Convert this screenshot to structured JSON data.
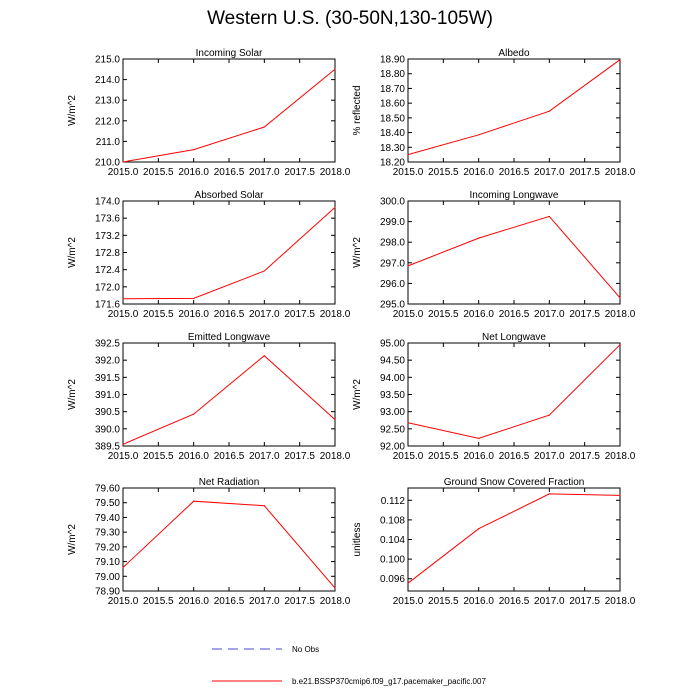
{
  "title": "Western U.S. (30-50N,130-105W)",
  "legend": {
    "obs_label": "No Obs",
    "obs_color": "#4a4acf",
    "model_label": "b.e21.BSSP370cmip6.f09_g17.pacemaker_pacific.007",
    "model_color": "#ff0000"
  },
  "chart_data": [
    {
      "type": "line",
      "title": "Incoming Solar",
      "ylabel": "W/m^2",
      "x": [
        2015,
        2016,
        2017,
        2018
      ],
      "values": [
        210.0,
        210.6,
        211.7,
        214.5
      ],
      "ylim": [
        210.0,
        215.0
      ],
      "yticks": [
        "210.0",
        "211.0",
        "212.0",
        "213.0",
        "214.0",
        "215.0"
      ],
      "ytick_values": [
        210,
        211,
        212,
        213,
        214,
        215
      ],
      "xticks": [
        "2015.0",
        "2015.5",
        "2016.0",
        "2016.5",
        "2017.0",
        "2017.5",
        "2018.0"
      ],
      "xtick_values": [
        2015,
        2015.5,
        2016,
        2016.5,
        2017,
        2017.5,
        2018
      ],
      "xlim": [
        2015,
        2018
      ]
    },
    {
      "type": "line",
      "title": "Albedo",
      "ylabel": "% reflected",
      "x": [
        2015,
        2016,
        2017,
        2018
      ],
      "values": [
        18.25,
        18.385,
        18.545,
        18.895
      ],
      "ylim": [
        18.2,
        18.9
      ],
      "yticks": [
        "18.20",
        "18.30",
        "18.40",
        "18.50",
        "18.60",
        "18.70",
        "18.80",
        "18.90"
      ],
      "ytick_values": [
        18.2,
        18.3,
        18.4,
        18.5,
        18.6,
        18.7,
        18.8,
        18.9
      ],
      "xticks": [
        "2015.0",
        "2015.5",
        "2016.0",
        "2016.5",
        "2017.0",
        "2017.5",
        "2018.0"
      ],
      "xtick_values": [
        2015,
        2015.5,
        2016,
        2016.5,
        2017,
        2017.5,
        2018
      ],
      "xlim": [
        2015,
        2018
      ]
    },
    {
      "type": "line",
      "title": "Absorbed Solar",
      "ylabel": "W/m^2",
      "x": [
        2015,
        2016,
        2017,
        2018
      ],
      "values": [
        171.72,
        171.73,
        172.37,
        173.85
      ],
      "ylim": [
        171.6,
        174.0
      ],
      "yticks": [
        "171.6",
        "172.0",
        "172.4",
        "172.8",
        "173.2",
        "173.6",
        "174.0"
      ],
      "ytick_values": [
        171.6,
        172.0,
        172.4,
        172.8,
        173.2,
        173.6,
        174.0
      ],
      "xticks": [
        "2015.0",
        "2015.5",
        "2016.0",
        "2016.5",
        "2017.0",
        "2017.5",
        "2018.0"
      ],
      "xtick_values": [
        2015,
        2015.5,
        2016,
        2016.5,
        2017,
        2017.5,
        2018
      ],
      "xlim": [
        2015,
        2018
      ]
    },
    {
      "type": "line",
      "title": "Incoming Longwave",
      "ylabel": "W/m^2",
      "x": [
        2015,
        2016,
        2017,
        2018
      ],
      "values": [
        296.85,
        298.2,
        299.25,
        295.3
      ],
      "ylim": [
        295.0,
        300.0
      ],
      "yticks": [
        "295.0",
        "296.0",
        "297.0",
        "298.0",
        "299.0",
        "300.0"
      ],
      "ytick_values": [
        295,
        296,
        297,
        298,
        299,
        300
      ],
      "xticks": [
        "2015.0",
        "2015.5",
        "2016.0",
        "2016.5",
        "2017.0",
        "2017.5",
        "2018.0"
      ],
      "xtick_values": [
        2015,
        2015.5,
        2016,
        2016.5,
        2017,
        2017.5,
        2018
      ],
      "xlim": [
        2015,
        2018
      ]
    },
    {
      "type": "line",
      "title": "Emitted Longwave",
      "ylabel": "W/m^2",
      "x": [
        2015,
        2016,
        2017,
        2018
      ],
      "values": [
        389.55,
        390.43,
        392.13,
        390.27
      ],
      "ylim": [
        389.5,
        392.5
      ],
      "yticks": [
        "389.5",
        "390.0",
        "390.5",
        "391.0",
        "391.5",
        "392.0",
        "392.5"
      ],
      "ytick_values": [
        389.5,
        390.0,
        390.5,
        391.0,
        391.5,
        392.0,
        392.5
      ],
      "xticks": [
        "2015.0",
        "2015.5",
        "2016.0",
        "2016.5",
        "2017.0",
        "2017.5",
        "2018.0"
      ],
      "xtick_values": [
        2015,
        2015.5,
        2016,
        2016.5,
        2017,
        2017.5,
        2018
      ],
      "xlim": [
        2015,
        2018
      ]
    },
    {
      "type": "line",
      "title": "Net Longwave",
      "ylabel": "W/m^2",
      "x": [
        2015,
        2016,
        2017,
        2018
      ],
      "values": [
        92.68,
        92.22,
        92.9,
        94.95
      ],
      "ylim": [
        92.0,
        95.0
      ],
      "yticks": [
        "92.00",
        "92.50",
        "93.00",
        "93.50",
        "94.00",
        "94.50",
        "95.00"
      ],
      "ytick_values": [
        92.0,
        92.5,
        93.0,
        93.5,
        94.0,
        94.5,
        95.0
      ],
      "xticks": [
        "2015.0",
        "2015.5",
        "2016.0",
        "2016.5",
        "2017.0",
        "2017.5",
        "2018.0"
      ],
      "xtick_values": [
        2015,
        2015.5,
        2016,
        2016.5,
        2017,
        2017.5,
        2018
      ],
      "xlim": [
        2015,
        2018
      ]
    },
    {
      "type": "line",
      "title": "Net Radiation",
      "ylabel": "W/m^2",
      "x": [
        2015,
        2016,
        2017,
        2018
      ],
      "values": [
        79.06,
        79.51,
        79.48,
        78.92
      ],
      "ylim": [
        78.9,
        79.6
      ],
      "yticks": [
        "78.90",
        "79.00",
        "79.10",
        "79.20",
        "79.30",
        "79.40",
        "79.50",
        "79.60"
      ],
      "ytick_values": [
        78.9,
        79.0,
        79.1,
        79.2,
        79.3,
        79.4,
        79.5,
        79.6
      ],
      "xticks": [
        "2015.0",
        "2015.5",
        "2016.0",
        "2016.5",
        "2017.0",
        "2017.5",
        "2018.0"
      ],
      "xtick_values": [
        2015,
        2015.5,
        2016,
        2016.5,
        2017,
        2017.5,
        2018
      ],
      "xlim": [
        2015,
        2018
      ]
    },
    {
      "type": "line",
      "title": "Ground Snow Covered Fraction",
      "ylabel": "unitless",
      "x": [
        2015,
        2016,
        2017,
        2018
      ],
      "values": [
        0.0951,
        0.1062,
        0.1133,
        0.113
      ],
      "ylim": [
        0.0935,
        0.1145
      ],
      "yticks": [
        "0.096",
        "0.100",
        "0.104",
        "0.108",
        "0.112"
      ],
      "ytick_values": [
        0.096,
        0.1,
        0.104,
        0.108,
        0.112
      ],
      "xticks": [
        "2015.0",
        "2015.5",
        "2016.0",
        "2016.5",
        "2017.0",
        "2017.5",
        "2018.0"
      ],
      "xtick_values": [
        2015,
        2015.5,
        2016,
        2016.5,
        2017,
        2017.5,
        2018
      ],
      "xlim": [
        2015,
        2018
      ]
    }
  ]
}
